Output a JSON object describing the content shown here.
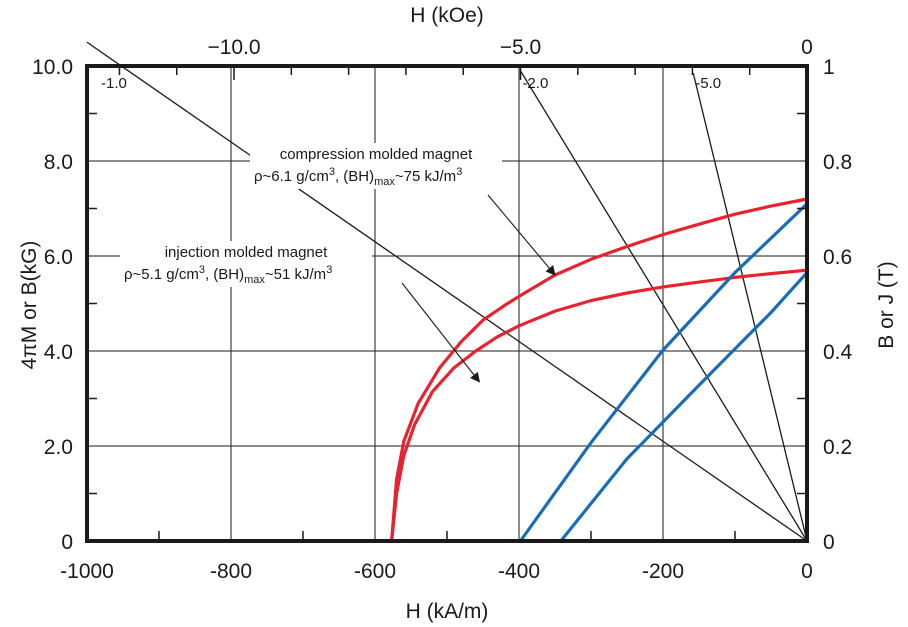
{
  "chart_data": {
    "type": "line",
    "xlabel": "H (kA/m)",
    "top_xlabel": "H (kOe)",
    "ylabel": "4πM or B(kG)",
    "right_ylabel": "B or J (T)",
    "xlim": [
      -1000,
      0
    ],
    "ylim": [
      0,
      10
    ],
    "grid": true,
    "x_ticks": [
      {
        "value": -1000,
        "label": "-1000"
      },
      {
        "value": -800,
        "label": "-800"
      },
      {
        "value": -600,
        "label": "-600"
      },
      {
        "value": -400,
        "label": "-400"
      },
      {
        "value": -200,
        "label": "-200"
      },
      {
        "value": 0,
        "label": "0"
      }
    ],
    "top_x_ticks": [
      {
        "value": -10,
        "label": "−10.0"
      },
      {
        "value": -5,
        "label": "−5.0"
      },
      {
        "value": 0,
        "label": "0"
      }
    ],
    "y_ticks": [
      {
        "value": 0,
        "label": "0"
      },
      {
        "value": 2,
        "label": "2.0"
      },
      {
        "value": 4,
        "label": "4.0"
      },
      {
        "value": 6,
        "label": "6.0"
      },
      {
        "value": 8,
        "label": "8.0"
      },
      {
        "value": 10,
        "label": "10.0"
      }
    ],
    "right_y_ticks": [
      {
        "value": 0,
        "label": "0"
      },
      {
        "value": 0.2,
        "label": "0.2"
      },
      {
        "value": 0.4,
        "label": "0.4"
      },
      {
        "value": 0.6,
        "label": "0.6"
      },
      {
        "value": 0.8,
        "label": "0.8"
      },
      {
        "value": 1,
        "label": "1"
      }
    ],
    "load_lines": [
      {
        "label": "-1.0",
        "x": [
          0,
          -1000
        ],
        "y": [
          0,
          10.5
        ]
      },
      {
        "label": "-2.0",
        "x": [
          0,
          -398
        ],
        "y": [
          0,
          9.9
        ]
      },
      {
        "label": "-5.0",
        "x": [
          0,
          -158
        ],
        "y": [
          0,
          9.85
        ]
      }
    ],
    "series": [
      {
        "color": "#e8222e",
        "x": [
          -577,
          -570,
          -560,
          -545,
          -520,
          -490,
          -460,
          -430,
          -400,
          -350,
          -300,
          -250,
          -200,
          -150,
          -100,
          -50,
          0
        ],
        "y": [
          0,
          1.0,
          1.8,
          2.45,
          3.15,
          3.65,
          4.0,
          4.3,
          4.53,
          4.84,
          5.06,
          5.22,
          5.35,
          5.45,
          5.55,
          5.63,
          5.7
        ]
      },
      {
        "color": "#e8222e",
        "x": [
          -577,
          -570,
          -560,
          -540,
          -510,
          -480,
          -450,
          -420,
          -400,
          -350,
          -300,
          -250,
          -200,
          -150,
          -100,
          -50,
          0
        ],
        "y": [
          0,
          1.3,
          2.1,
          2.9,
          3.65,
          4.2,
          4.65,
          4.96,
          5.15,
          5.6,
          5.93,
          6.2,
          6.45,
          6.67,
          6.88,
          7.05,
          7.2
        ]
      },
      {
        "color": "#1a6db5",
        "x": [
          -398,
          -300,
          -200,
          -100,
          0
        ],
        "y": [
          0,
          2.07,
          4.02,
          5.65,
          7.1
        ]
      },
      {
        "color": "#1a6db5",
        "x": [
          -342,
          -250,
          -150,
          -50,
          0
        ],
        "y": [
          0,
          1.73,
          3.28,
          4.81,
          5.65
        ]
      }
    ],
    "annotations": {
      "compression": {
        "line1": "compression molded magnet",
        "line2_a": "ρ~6.1 g/cm",
        "line2_sup": "3",
        "line2_b": ", (BH)",
        "line2_sub": "max",
        "line2_c": "~75 kJ/m",
        "line2_sup2": "3",
        "arrow_to": {
          "x": -350,
          "y": 5.6
        }
      },
      "injection": {
        "line1": "injection molded magnet",
        "line2_a": "ρ~5.1 g/cm",
        "line2_sup": "3",
        "line2_b": ", (BH)",
        "line2_sub": "max",
        "line2_c": "~51 kJ/m",
        "line2_sup2": "3",
        "arrow_to": {
          "x": -455,
          "y": 3.35
        }
      }
    }
  }
}
